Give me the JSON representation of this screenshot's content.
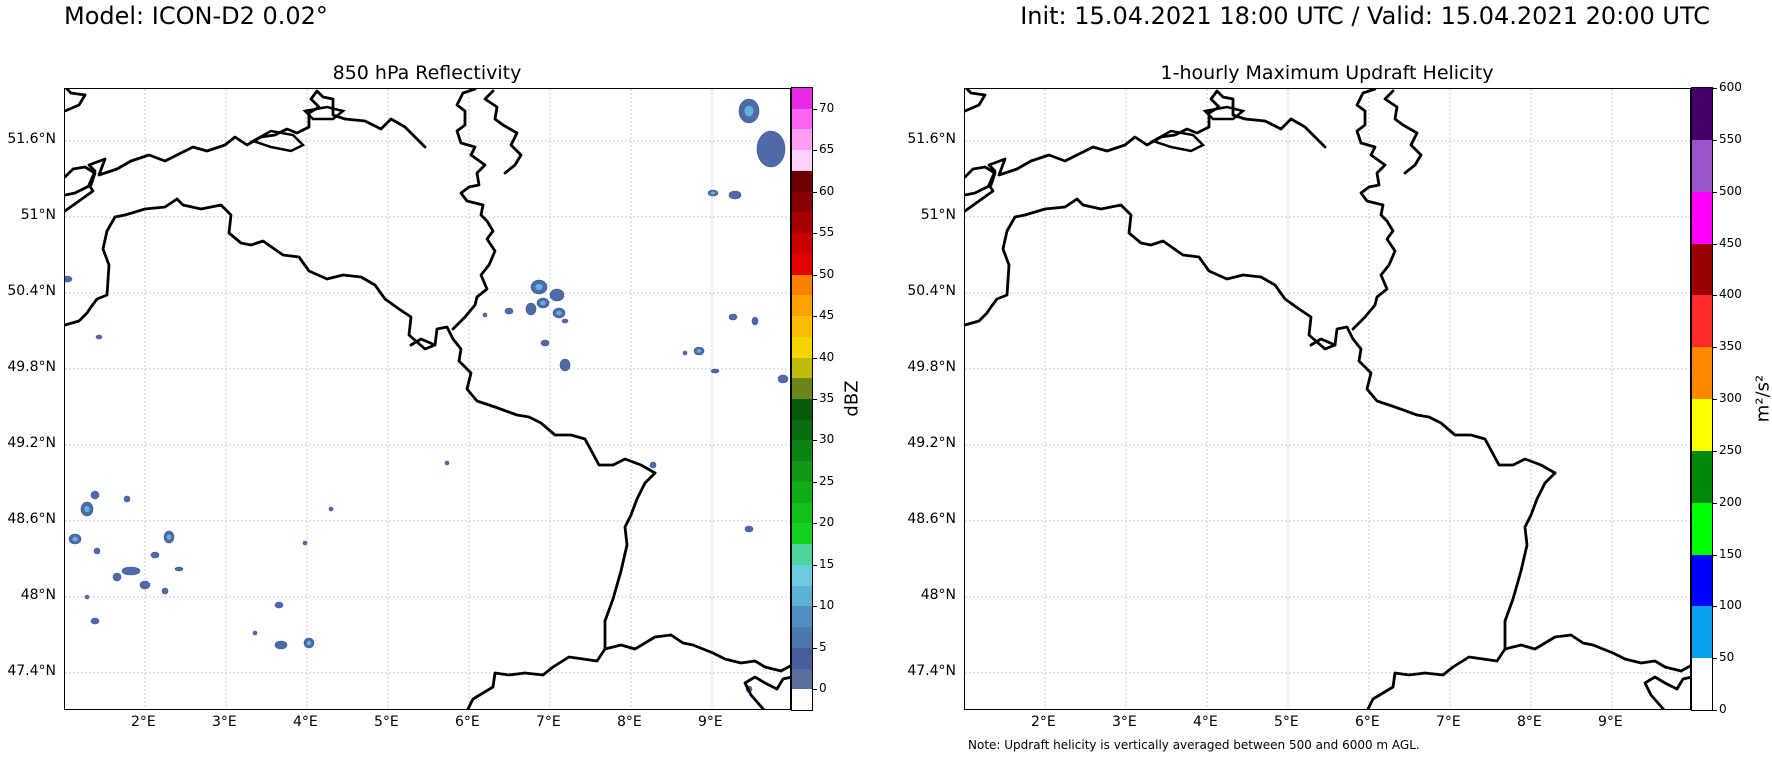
{
  "header": {
    "model": "Model: ICON-D2 0.02°",
    "init_valid": "Init: 15.04.2021 18:00 UTC / Valid: 15.04.2021 20:00 UTC"
  },
  "panels": {
    "left": {
      "title": "850 hPa Reflectivity",
      "colorbar_unit": "dBZ",
      "colorbar_ticks": [
        "0",
        "5",
        "10",
        "15",
        "20",
        "25",
        "30",
        "35",
        "40",
        "45",
        "50",
        "55",
        "60",
        "65",
        "70"
      ],
      "colorbar_colors": [
        "#ffffff",
        "#5a6ea0",
        "#4a5d9e",
        "#4c78ae",
        "#4e90bf",
        "#5eb0d4",
        "#6ccbe0",
        "#4fd6a0",
        "#14d21e",
        "#12c01a",
        "#10ae16",
        "#0e9a14",
        "#0c8412",
        "#0a6e10",
        "#08580e",
        "#6a8618",
        "#bebc0c",
        "#f6d400",
        "#fcba00",
        "#fba200",
        "#fb8000",
        "#e20000",
        "#c80000",
        "#a80000",
        "#880000",
        "#6a0000",
        "#ffd0fa",
        "#ff9cf6",
        "#ff64f4",
        "#e42ae6"
      ],
      "precip_color": "#4f6aa8",
      "precip_highlight": "#5ab8d6"
    },
    "right": {
      "title": "1-hourly Maximum Updraft Helicity",
      "colorbar_unit": "m²/s²",
      "colorbar_ticks": [
        "0",
        "50",
        "100",
        "150",
        "200",
        "250",
        "300",
        "350",
        "400",
        "450",
        "500",
        "550",
        "600"
      ],
      "colorbar_colors": [
        "#ffffff",
        "#0aa0f0",
        "#0000ff",
        "#00ff00",
        "#00880a",
        "#ffff00",
        "#ff8800",
        "#ff2a2a",
        "#990000",
        "#ff00ff",
        "#9955cc",
        "#440066"
      ]
    },
    "lat_ticks": [
      "51.6°N",
      "51°N",
      "50.4°N",
      "49.8°N",
      "49.2°N",
      "48.6°N",
      "48°N",
      "47.4°N"
    ],
    "lon_ticks": [
      "2°E",
      "3°E",
      "4°E",
      "5°E",
      "6°E",
      "7°E",
      "8°E",
      "9°E"
    ]
  },
  "note": "Note: Updraft helicity is vertically averaged between 500 and 6000 m AGL."
}
